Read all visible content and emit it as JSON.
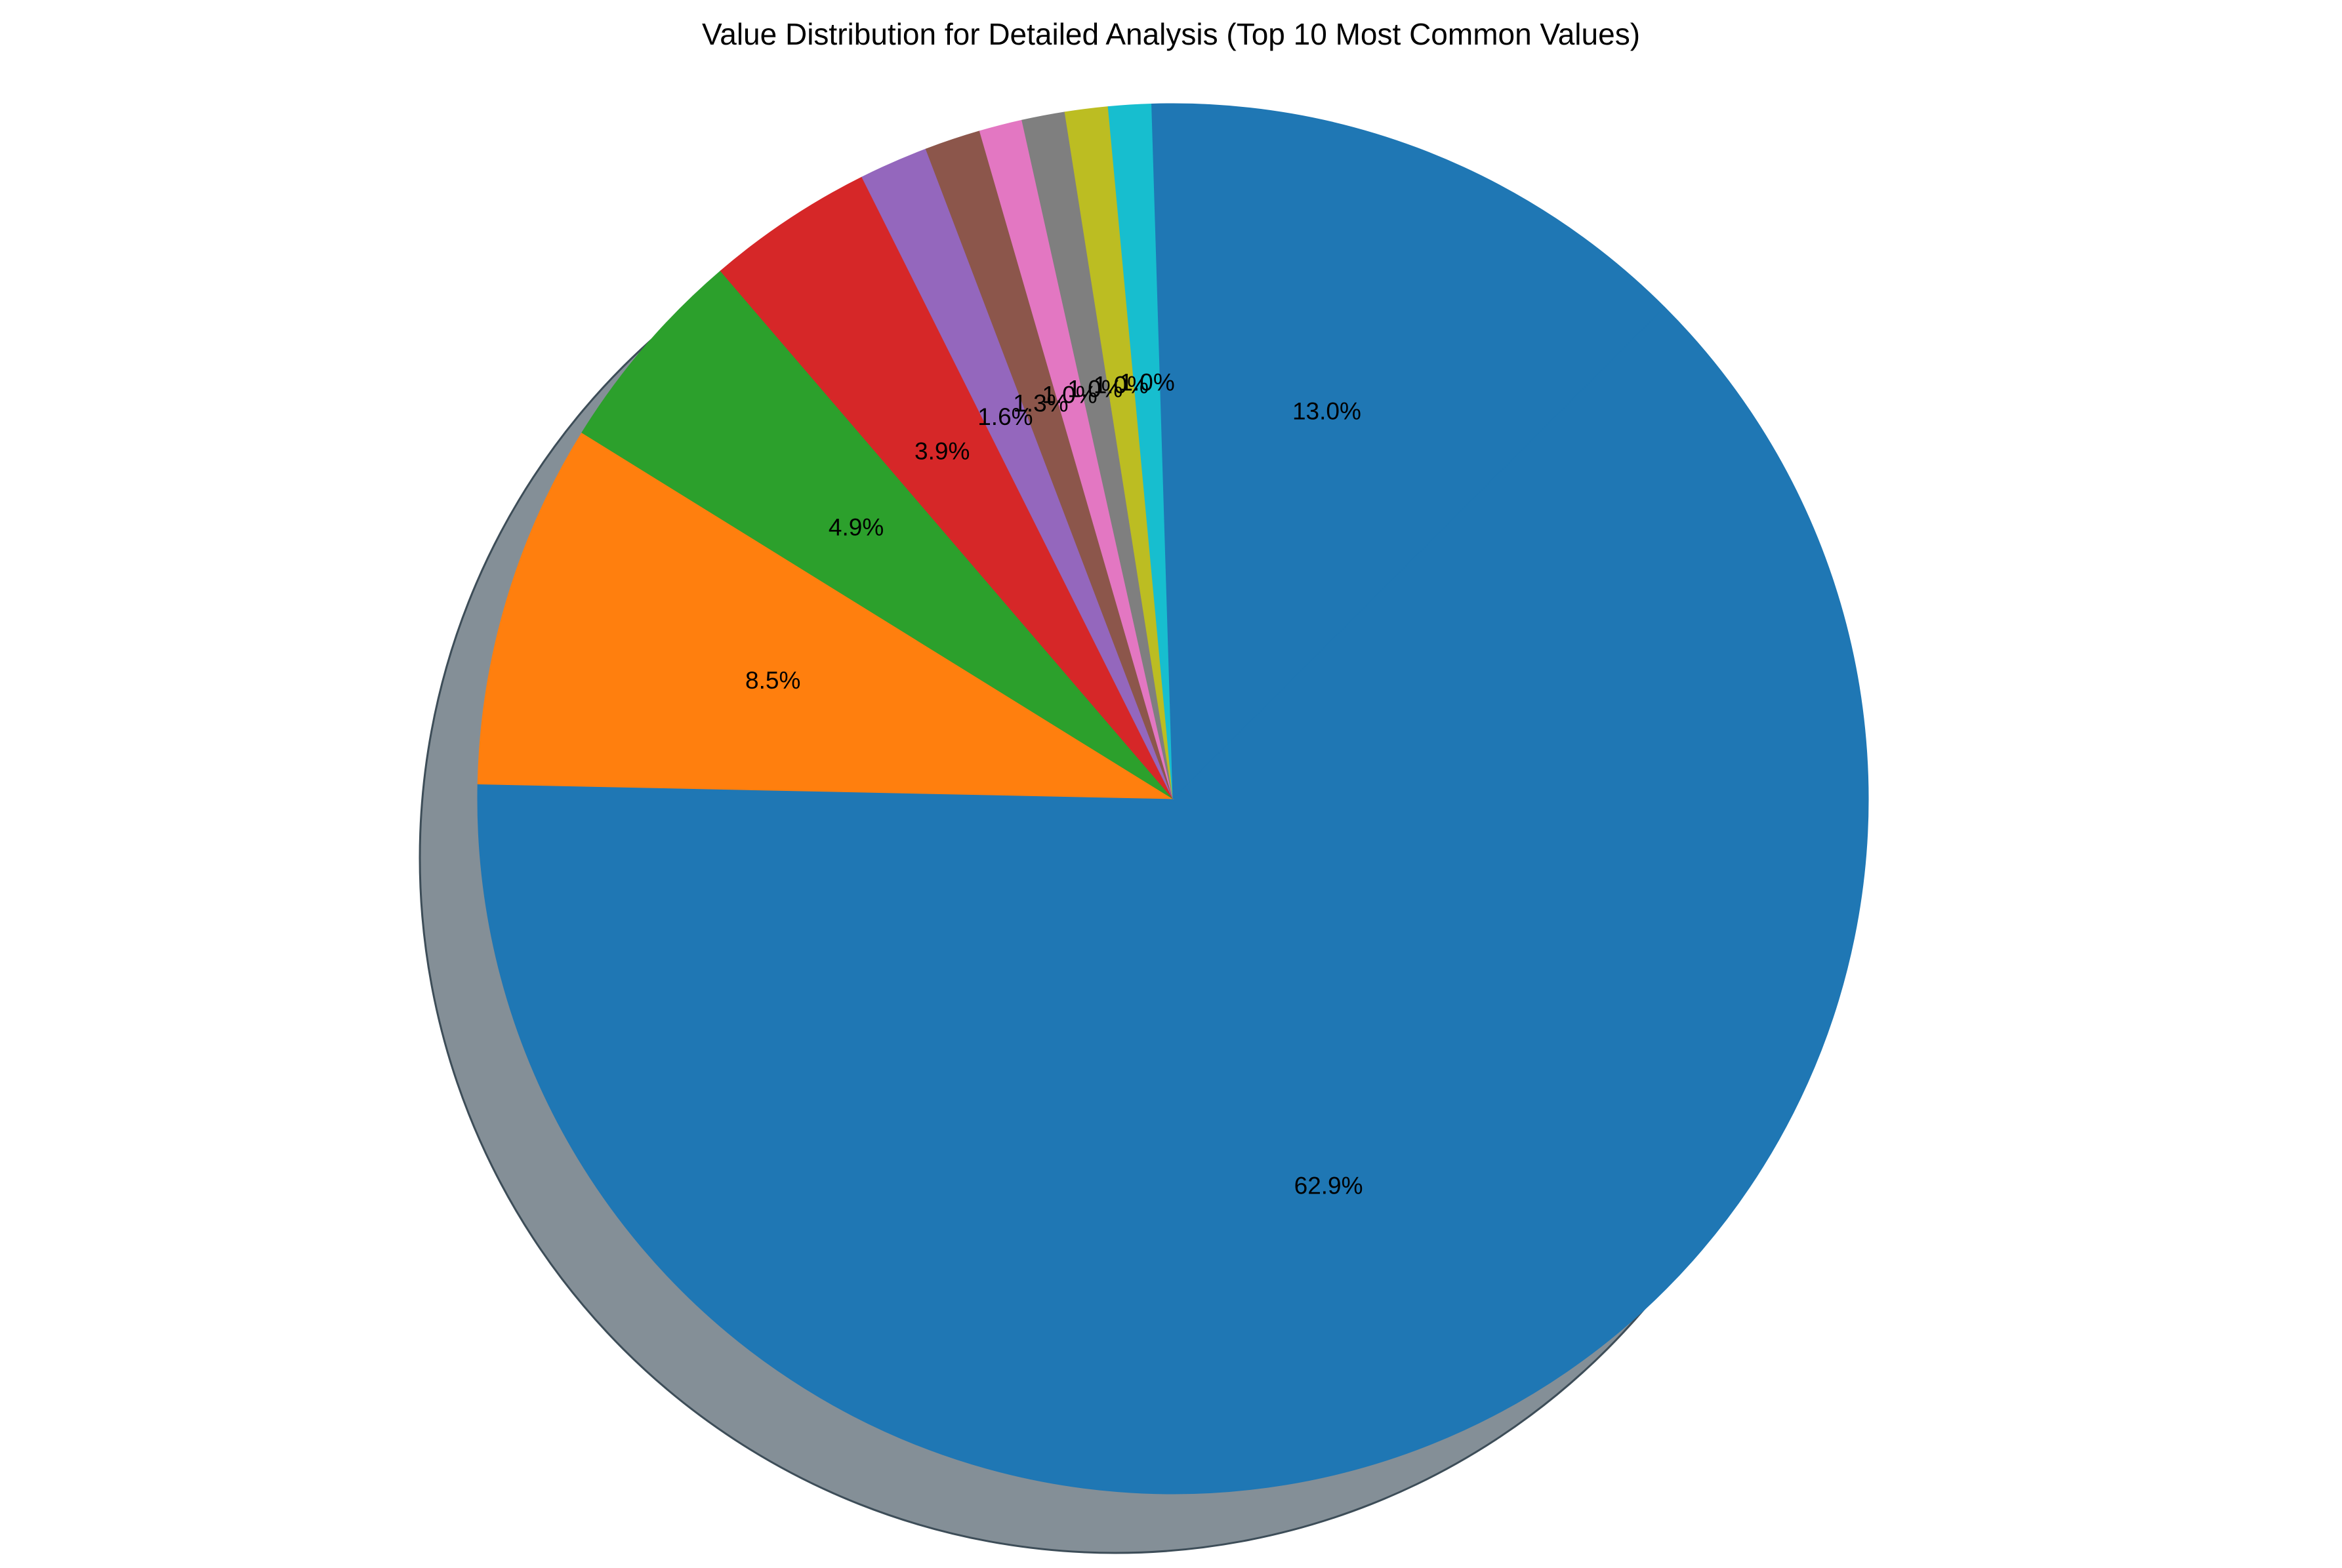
{
  "chart_data": {
    "type": "pie",
    "title": "Value Distribution for Detailed Analysis (Top 10 Most Common Values)",
    "values": [
      62.9,
      8.5,
      4.9,
      3.9,
      1.6,
      1.3,
      1.0,
      1.0,
      1.0,
      1.0,
      13.0
    ],
    "labels": [
      "62.9%",
      "8.5%",
      "4.9%",
      "3.9%",
      "1.6%",
      "1.3%",
      "1.0%",
      "1.0%",
      "1.0%",
      "1.0%",
      "13.0%"
    ],
    "colors": [
      "#1f77b4",
      "#ff7f0e",
      "#2ca02c",
      "#d62728",
      "#9467bd",
      "#8c564b",
      "#e377c2",
      "#7f7f7f",
      "#bcbd22",
      "#17becf",
      "#1f77b4"
    ],
    "shadow": true,
    "legend": "none"
  }
}
